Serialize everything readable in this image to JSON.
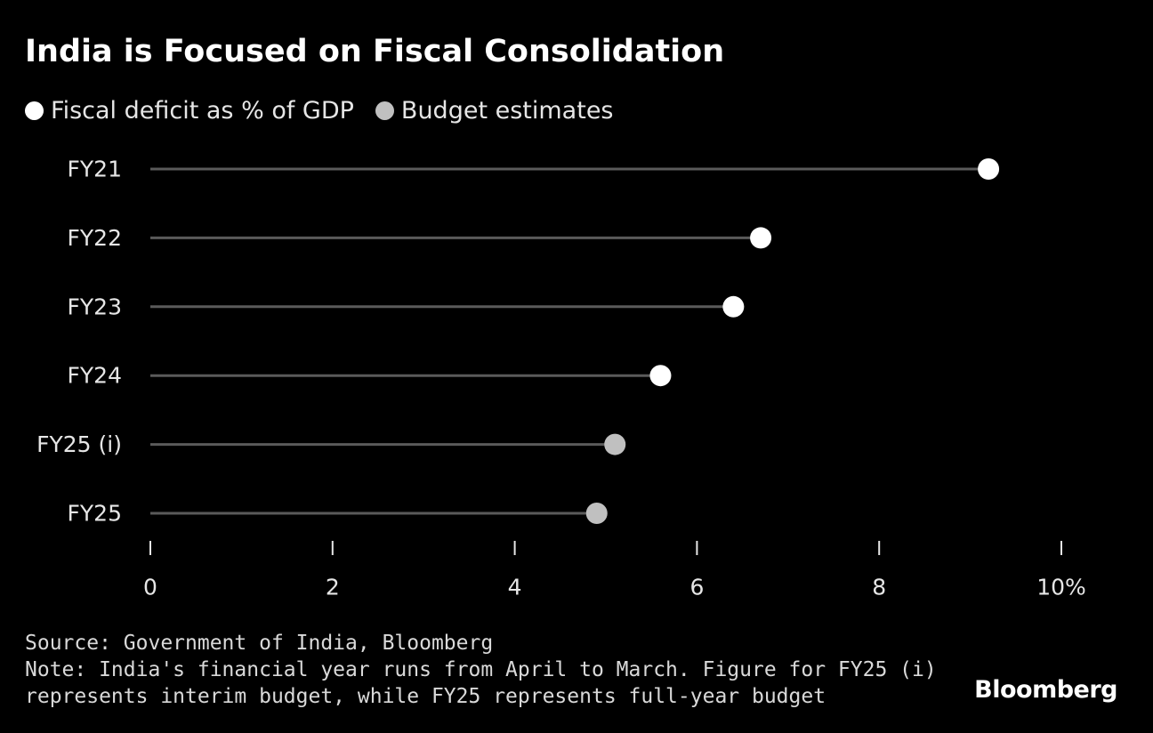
{
  "title": "India is Focused on Fiscal Consolidation",
  "legend": [
    {
      "label": "Fiscal deficit as % of GDP",
      "color": "#ffffff"
    },
    {
      "label": "Budget estimates",
      "color": "#c0c0c0"
    }
  ],
  "chart_data": {
    "type": "lollipop",
    "orientation": "horizontal",
    "categories": [
      "FY21",
      "FY22",
      "FY23",
      "FY24",
      "FY25 (i)",
      "FY25"
    ],
    "values": [
      9.2,
      6.7,
      6.4,
      5.6,
      5.1,
      4.9
    ],
    "series_by_point": [
      "Fiscal deficit as % of GDP",
      "Fiscal deficit as % of GDP",
      "Fiscal deficit as % of GDP",
      "Fiscal deficit as % of GDP",
      "Budget estimates",
      "Budget estimates"
    ],
    "xlim": [
      0,
      10
    ],
    "xticks": [
      0,
      2,
      4,
      6,
      8,
      10
    ],
    "xtick_labels": [
      "0",
      "2",
      "4",
      "6",
      "8",
      "10%"
    ],
    "stem_color": "#5a5a5a",
    "grid": false
  },
  "footer": {
    "source": "Source: Government of India, Bloomberg",
    "note_line1": "Note: India's financial year runs from April to March. Figure for FY25 (i)",
    "note_line2": "represents interim budget, while FY25 represents full-year budget"
  },
  "brand": "Bloomberg"
}
